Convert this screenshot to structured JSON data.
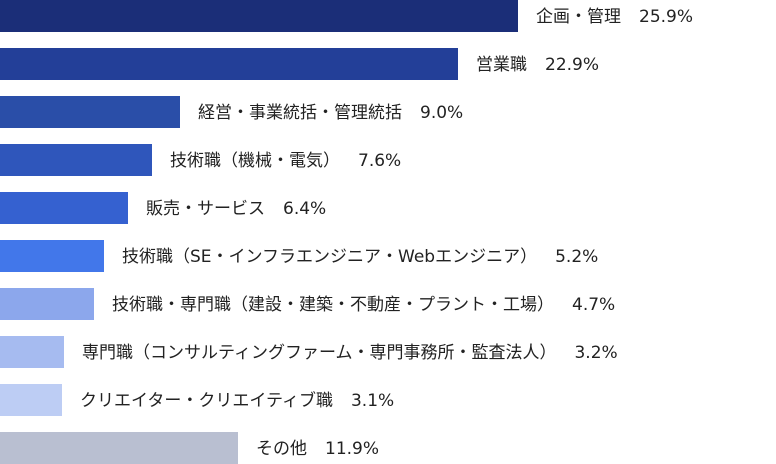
{
  "chart_data": {
    "type": "hbar",
    "categories": [
      "企画・管理",
      "営業職",
      "経営・事業統括・管理統括",
      "技術職（機械・電気）",
      "販売・サービス",
      "技術職（SE・インフラエンジニア・Webエンジニア）",
      "技術職・専門職（建設・建築・不動産・プラント・工場）",
      "専門職（コンサルティングファーム・専門事務所・監査法人）",
      "クリエイター・クリエイティブ職",
      "その他"
    ],
    "values": [
      25.9,
      22.9,
      9.0,
      7.6,
      6.4,
      5.2,
      4.7,
      3.2,
      3.1,
      11.9
    ],
    "value_labels": [
      "25.9%",
      "22.9%",
      "9.0%",
      "7.6%",
      "6.4%",
      "5.2%",
      "4.7%",
      "3.2%",
      "3.1%",
      "11.9%"
    ],
    "colors": [
      "#1b2e78",
      "#233f98",
      "#2a4ea8",
      "#2f56bb",
      "#3561d0",
      "#4277ea",
      "#8ca7ec",
      "#a6bbf0",
      "#bdcdf4",
      "#b9bfd1"
    ]
  }
}
